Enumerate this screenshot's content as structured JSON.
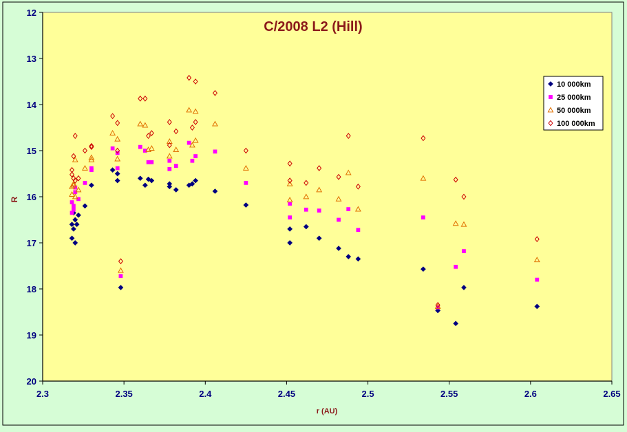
{
  "chart_data": {
    "type": "scatter",
    "title": "C/2008 L2 (Hill)",
    "xlabel": "r (AU)",
    "ylabel": "R",
    "xlim": [
      2.3,
      2.65
    ],
    "ylim": [
      12,
      20
    ],
    "y_inverted": true,
    "x_ticks": [
      "2.3",
      "2.35",
      "2.4",
      "2.45",
      "2.5",
      "2.55",
      "2.6",
      "2.65"
    ],
    "y_ticks": [
      "12",
      "13",
      "14",
      "15",
      "16",
      "17",
      "18",
      "19",
      "20"
    ],
    "grid": false,
    "legend_position": "top-right",
    "plot_background": "#ffff99",
    "outer_background": "#d6fdd6",
    "title_color": "#8b1a1a",
    "axis_label_color": "#8b1a1a",
    "tick_label_color": "#000080",
    "series": [
      {
        "name": "10 000km",
        "marker": "diamond-filled",
        "color": "#000080",
        "points": [
          [
            2.318,
            16.6
          ],
          [
            2.318,
            16.9
          ],
          [
            2.319,
            16.35
          ],
          [
            2.319,
            16.7
          ],
          [
            2.32,
            16.5
          ],
          [
            2.32,
            17.0
          ],
          [
            2.321,
            16.6
          ],
          [
            2.322,
            16.4
          ],
          [
            2.326,
            16.2
          ],
          [
            2.33,
            15.75
          ],
          [
            2.343,
            15.42
          ],
          [
            2.346,
            15.5
          ],
          [
            2.346,
            15.65
          ],
          [
            2.348,
            17.97
          ],
          [
            2.36,
            15.6
          ],
          [
            2.363,
            15.75
          ],
          [
            2.365,
            15.62
          ],
          [
            2.367,
            15.65
          ],
          [
            2.378,
            15.72
          ],
          [
            2.378,
            15.78
          ],
          [
            2.382,
            15.85
          ],
          [
            2.39,
            15.75
          ],
          [
            2.392,
            15.72
          ],
          [
            2.394,
            15.65
          ],
          [
            2.406,
            15.88
          ],
          [
            2.425,
            16.18
          ],
          [
            2.452,
            16.7
          ],
          [
            2.452,
            17.0
          ],
          [
            2.462,
            16.65
          ],
          [
            2.47,
            16.9
          ],
          [
            2.482,
            17.12
          ],
          [
            2.488,
            17.3
          ],
          [
            2.494,
            17.35
          ],
          [
            2.534,
            17.57
          ],
          [
            2.543,
            18.47
          ],
          [
            2.554,
            18.75
          ],
          [
            2.559,
            17.97
          ],
          [
            2.604,
            18.38
          ]
        ]
      },
      {
        "name": "25 000km",
        "marker": "square-filled",
        "color": "#ff00ff",
        "points": [
          [
            2.318,
            16.12
          ],
          [
            2.318,
            16.35
          ],
          [
            2.319,
            16.2
          ],
          [
            2.319,
            16.28
          ],
          [
            2.32,
            15.8
          ],
          [
            2.32,
            15.9
          ],
          [
            2.322,
            16.05
          ],
          [
            2.326,
            15.7
          ],
          [
            2.33,
            15.38
          ],
          [
            2.33,
            15.42
          ],
          [
            2.343,
            14.95
          ],
          [
            2.346,
            15.05
          ],
          [
            2.346,
            15.38
          ],
          [
            2.348,
            17.72
          ],
          [
            2.36,
            14.92
          ],
          [
            2.363,
            15.0
          ],
          [
            2.365,
            15.25
          ],
          [
            2.367,
            15.25
          ],
          [
            2.378,
            15.22
          ],
          [
            2.378,
            15.4
          ],
          [
            2.382,
            15.33
          ],
          [
            2.39,
            14.83
          ],
          [
            2.392,
            15.22
          ],
          [
            2.394,
            15.12
          ],
          [
            2.406,
            15.02
          ],
          [
            2.425,
            15.7
          ],
          [
            2.452,
            16.15
          ],
          [
            2.452,
            16.45
          ],
          [
            2.462,
            16.28
          ],
          [
            2.47,
            16.3
          ],
          [
            2.482,
            16.5
          ],
          [
            2.488,
            16.27
          ],
          [
            2.494,
            16.72
          ],
          [
            2.534,
            16.45
          ],
          [
            2.543,
            18.4
          ],
          [
            2.554,
            17.52
          ],
          [
            2.559,
            17.18
          ],
          [
            2.604,
            17.8
          ]
        ]
      },
      {
        "name": "50 000km",
        "marker": "triangle-open",
        "color": "#e07000",
        "points": [
          [
            2.318,
            15.78
          ],
          [
            2.318,
            15.95
          ],
          [
            2.319,
            15.75
          ],
          [
            2.319,
            15.72
          ],
          [
            2.32,
            15.2
          ],
          [
            2.32,
            16.0
          ],
          [
            2.322,
            15.85
          ],
          [
            2.326,
            15.38
          ],
          [
            2.33,
            15.15
          ],
          [
            2.33,
            15.2
          ],
          [
            2.343,
            14.62
          ],
          [
            2.346,
            14.75
          ],
          [
            2.346,
            15.18
          ],
          [
            2.348,
            17.6
          ],
          [
            2.36,
            14.42
          ],
          [
            2.363,
            14.45
          ],
          [
            2.365,
            14.98
          ],
          [
            2.367,
            14.95
          ],
          [
            2.378,
            14.8
          ],
          [
            2.378,
            15.12
          ],
          [
            2.382,
            14.98
          ],
          [
            2.39,
            14.12
          ],
          [
            2.392,
            14.88
          ],
          [
            2.394,
            14.15
          ],
          [
            2.394,
            14.78
          ],
          [
            2.406,
            14.42
          ],
          [
            2.425,
            15.38
          ],
          [
            2.452,
            15.72
          ],
          [
            2.452,
            16.07
          ],
          [
            2.462,
            16.0
          ],
          [
            2.47,
            15.85
          ],
          [
            2.482,
            16.05
          ],
          [
            2.488,
            15.48
          ],
          [
            2.494,
            16.27
          ],
          [
            2.534,
            15.6
          ],
          [
            2.543,
            18.38
          ],
          [
            2.554,
            16.58
          ],
          [
            2.559,
            16.6
          ],
          [
            2.604,
            17.37
          ]
        ]
      },
      {
        "name": "100 000km",
        "marker": "diamond-open",
        "color": "#cc0000",
        "points": [
          [
            2.318,
            15.42
          ],
          [
            2.318,
            15.52
          ],
          [
            2.319,
            15.12
          ],
          [
            2.319,
            15.6
          ],
          [
            2.32,
            14.68
          ],
          [
            2.32,
            15.65
          ],
          [
            2.322,
            15.6
          ],
          [
            2.326,
            15.0
          ],
          [
            2.33,
            14.9
          ],
          [
            2.33,
            14.92
          ],
          [
            2.343,
            14.25
          ],
          [
            2.346,
            14.4
          ],
          [
            2.346,
            15.0
          ],
          [
            2.348,
            17.4
          ],
          [
            2.36,
            13.87
          ],
          [
            2.363,
            13.87
          ],
          [
            2.365,
            14.68
          ],
          [
            2.367,
            14.62
          ],
          [
            2.378,
            14.38
          ],
          [
            2.378,
            14.88
          ],
          [
            2.382,
            14.58
          ],
          [
            2.39,
            13.42
          ],
          [
            2.392,
            14.5
          ],
          [
            2.394,
            13.5
          ],
          [
            2.394,
            14.38
          ],
          [
            2.406,
            13.75
          ],
          [
            2.425,
            15.0
          ],
          [
            2.452,
            15.28
          ],
          [
            2.452,
            15.65
          ],
          [
            2.462,
            15.7
          ],
          [
            2.47,
            15.38
          ],
          [
            2.482,
            15.57
          ],
          [
            2.488,
            14.68
          ],
          [
            2.494,
            15.78
          ],
          [
            2.534,
            14.73
          ],
          [
            2.543,
            18.35
          ],
          [
            2.554,
            15.63
          ],
          [
            2.559,
            16.0
          ],
          [
            2.604,
            16.92
          ]
        ]
      }
    ]
  }
}
